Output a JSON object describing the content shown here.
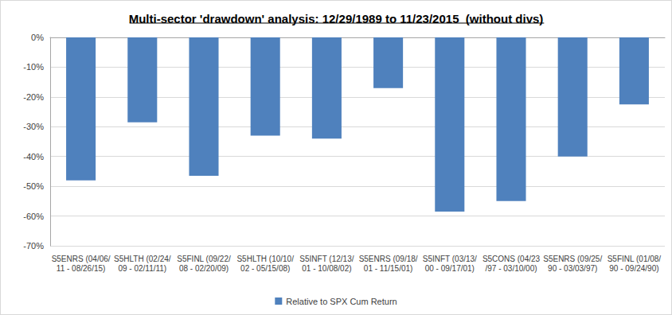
{
  "chart_data": {
    "type": "bar",
    "title": "Multi-sector 'drawdown' analysis: 12/29/1989 to 11/23/2015  (without divs)",
    "categories": [
      "S5ENRS (04/06/11 - 08/26/15)",
      "S5HLTH (02/24/09 - 02/11/11)",
      "S5FINL (09/22/08 - 02/20/09)",
      "S5HLTH (10/10/02 - 05/15/08)",
      "S5INFT (12/13/01 - 10/08/02)",
      "S5ENRS (09/18/01 - 11/15/01)",
      "S5INFT (03/13/00 - 09/17/01)",
      "S5CONS (04/23/97 - 03/10/00)",
      "S5ENRS (09/25/90 - 03/03/97)",
      "S5FINL (01/08/90 - 09/24/90)"
    ],
    "series": [
      {
        "name": "Relative to SPX Cum Return",
        "color": "#4f81bd",
        "values": [
          -48,
          -28.5,
          -46.5,
          -33,
          -34,
          -17,
          -58.5,
          -55,
          -40,
          -22.5
        ]
      }
    ],
    "ylim": [
      -70,
      0
    ],
    "yticks": [
      {
        "value": -70,
        "label": "-70%"
      },
      {
        "value": -60,
        "label": "-60%"
      },
      {
        "value": -50,
        "label": "-50%"
      },
      {
        "value": -40,
        "label": "-40%"
      },
      {
        "value": -30,
        "label": "-30%"
      },
      {
        "value": -20,
        "label": "-20%"
      },
      {
        "value": -10,
        "label": "-10%"
      },
      {
        "value": 0,
        "label": "0%"
      }
    ],
    "grid": true,
    "legend": "bottom"
  }
}
